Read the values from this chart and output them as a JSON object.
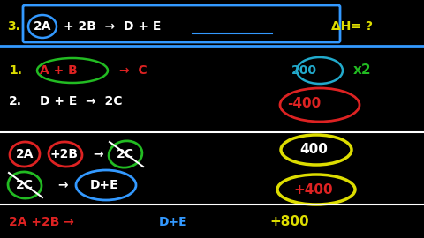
{
  "bg_color": "#000000",
  "colors": {
    "white": "#ffffff",
    "red": "#dd2222",
    "green": "#22bb22",
    "blue": "#3399ff",
    "yellow": "#dddd00",
    "cyan": "#22aacc"
  },
  "title_prefix": "3.",
  "title_dH": "ΔH= ?",
  "line1_num": "1.",
  "line2_num": "2.",
  "line1_val": "200",
  "line1_x2": "x2",
  "line2_val": "-400",
  "step1_val": "400",
  "step2_val": "+400",
  "final_val": "+800"
}
